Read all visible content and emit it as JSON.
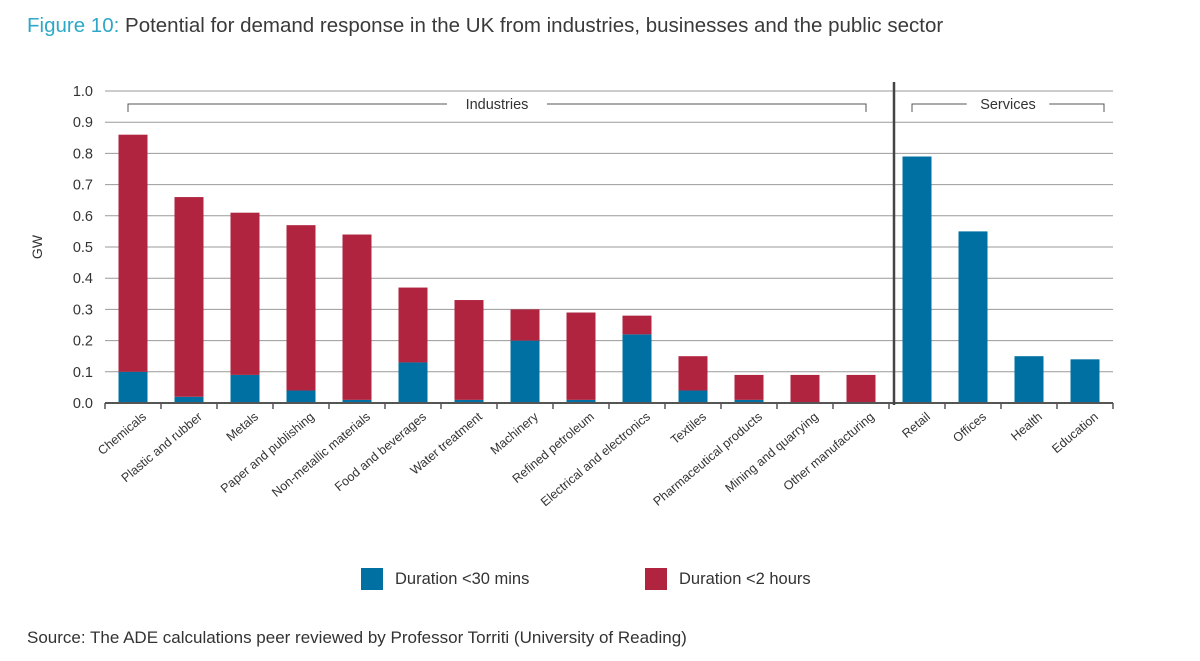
{
  "header": {
    "figure_label": "Figure 10:",
    "title": "Potential for demand response in the UK from industries, businesses and the public sector"
  },
  "footer": {
    "source": "Source: The ADE calculations peer reviewed by Professor Torriti (University of Reading)"
  },
  "colors": {
    "short": "#0070a2",
    "long": "#b0243f",
    "title_accent": "#2fa8c8"
  },
  "chart_data": {
    "type": "bar",
    "stacked": true,
    "ylabel": "GW",
    "xlabel": "",
    "ylim": [
      0,
      1.0
    ],
    "yticks": [
      "0.0",
      "0.1",
      "0.2",
      "0.3",
      "0.4",
      "0.5",
      "0.6",
      "0.7",
      "0.8",
      "0.9",
      "1.0"
    ],
    "grid": true,
    "legend_position": "bottom",
    "groups": [
      {
        "label": "Industries",
        "count": 14
      },
      {
        "label": "Services",
        "count": 4
      }
    ],
    "categories": [
      "Chemicals",
      "Plastic and rubber",
      "Metals",
      "Paper and publishing",
      "Non-metallic materials",
      "Food and beverages",
      "Water treatment",
      "Machinery",
      "Refined petroleum",
      "Electrical and electronics",
      "Textiles",
      "Pharmaceutical products",
      "Mining and quarrying",
      "Other manufacturing",
      "Retail",
      "Offices",
      "Health",
      "Education"
    ],
    "series": [
      {
        "name": "Duration <30 mins",
        "values": [
          0.1,
          0.02,
          0.09,
          0.04,
          0.01,
          0.13,
          0.01,
          0.2,
          0.01,
          0.22,
          0.04,
          0.01,
          0.0,
          0.0,
          0.79,
          0.55,
          0.15,
          0.14
        ]
      },
      {
        "name": "Duration <2 hours",
        "values": [
          0.76,
          0.64,
          0.52,
          0.53,
          0.53,
          0.24,
          0.32,
          0.1,
          0.28,
          0.06,
          0.11,
          0.08,
          0.09,
          0.09,
          0.0,
          0.0,
          0.0,
          0.0
        ]
      }
    ]
  }
}
